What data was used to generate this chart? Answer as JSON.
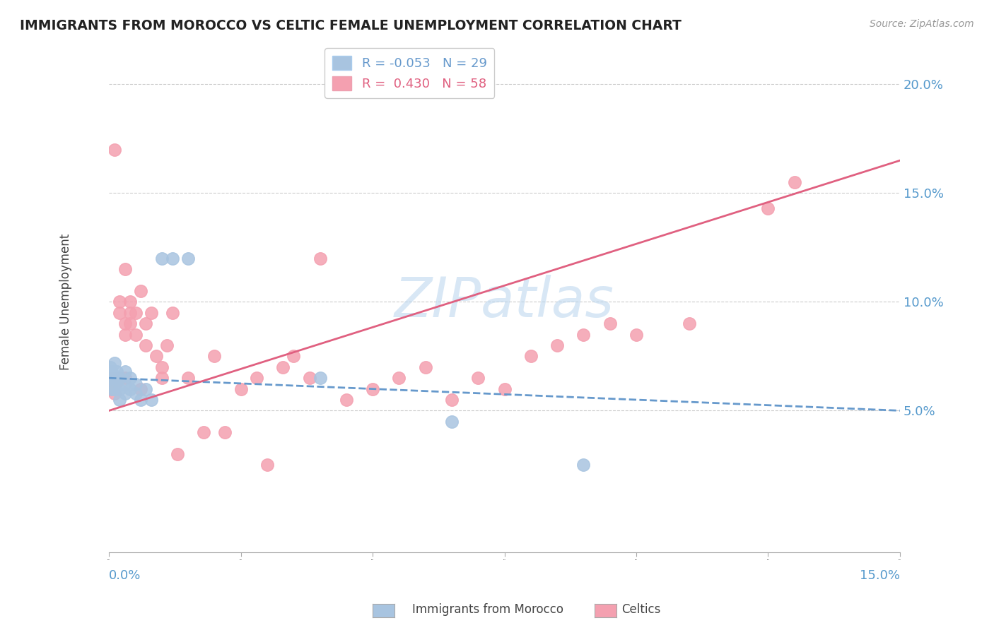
{
  "title": "IMMIGRANTS FROM MOROCCO VS CELTIC FEMALE UNEMPLOYMENT CORRELATION CHART",
  "source": "Source: ZipAtlas.com",
  "ylabel": "Female Unemployment",
  "right_ytick_vals": [
    0.05,
    0.1,
    0.15,
    0.2
  ],
  "right_ytick_labels": [
    "5.0%",
    "10.0%",
    "15.0%",
    "20.0%"
  ],
  "xmin": 0.0,
  "xmax": 0.15,
  "ymin": -0.015,
  "ymax": 0.215,
  "watermark": "ZIPatlas",
  "morocco_scatter_x": [
    0.0002,
    0.0003,
    0.0005,
    0.0005,
    0.0007,
    0.001,
    0.001,
    0.001,
    0.0015,
    0.0015,
    0.002,
    0.002,
    0.002,
    0.003,
    0.003,
    0.003,
    0.004,
    0.004,
    0.005,
    0.005,
    0.006,
    0.007,
    0.008,
    0.01,
    0.012,
    0.015,
    0.04,
    0.065,
    0.09
  ],
  "morocco_scatter_y": [
    0.065,
    0.07,
    0.06,
    0.068,
    0.065,
    0.06,
    0.065,
    0.072,
    0.065,
    0.068,
    0.055,
    0.06,
    0.065,
    0.058,
    0.062,
    0.068,
    0.06,
    0.065,
    0.058,
    0.062,
    0.055,
    0.06,
    0.055,
    0.12,
    0.12,
    0.12,
    0.065,
    0.045,
    0.025
  ],
  "celtics_scatter_x": [
    0.0002,
    0.0003,
    0.0005,
    0.0007,
    0.001,
    0.001,
    0.001,
    0.001,
    0.0015,
    0.002,
    0.002,
    0.002,
    0.003,
    0.003,
    0.003,
    0.003,
    0.004,
    0.004,
    0.004,
    0.005,
    0.005,
    0.006,
    0.006,
    0.007,
    0.007,
    0.008,
    0.009,
    0.01,
    0.01,
    0.011,
    0.012,
    0.013,
    0.015,
    0.018,
    0.02,
    0.022,
    0.025,
    0.028,
    0.03,
    0.033,
    0.035,
    0.038,
    0.04,
    0.045,
    0.05,
    0.055,
    0.06,
    0.065,
    0.07,
    0.075,
    0.08,
    0.085,
    0.09,
    0.095,
    0.1,
    0.11,
    0.125,
    0.13
  ],
  "celtics_scatter_y": [
    0.065,
    0.06,
    0.063,
    0.06,
    0.062,
    0.065,
    0.058,
    0.17,
    0.063,
    0.095,
    0.1,
    0.065,
    0.115,
    0.085,
    0.09,
    0.065,
    0.09,
    0.095,
    0.1,
    0.085,
    0.095,
    0.06,
    0.105,
    0.08,
    0.09,
    0.095,
    0.075,
    0.065,
    0.07,
    0.08,
    0.095,
    0.03,
    0.065,
    0.04,
    0.075,
    0.04,
    0.06,
    0.065,
    0.025,
    0.07,
    0.075,
    0.065,
    0.12,
    0.055,
    0.06,
    0.065,
    0.07,
    0.055,
    0.065,
    0.06,
    0.075,
    0.08,
    0.085,
    0.09,
    0.085,
    0.09,
    0.143,
    0.155
  ],
  "morocco_color": "#a8c4e0",
  "celtics_color": "#f4a0b0",
  "morocco_line_color": "#6699cc",
  "celtics_line_color": "#e06080",
  "morocco_R": "-0.053",
  "morocco_N": "29",
  "celtics_R": "0.430",
  "celtics_N": "58",
  "legend_label_morocco": "Immigrants from Morocco",
  "legend_label_celtics": "Celtics",
  "title_color": "#222222",
  "axis_color": "#5599cc",
  "grid_color": "#cccccc"
}
